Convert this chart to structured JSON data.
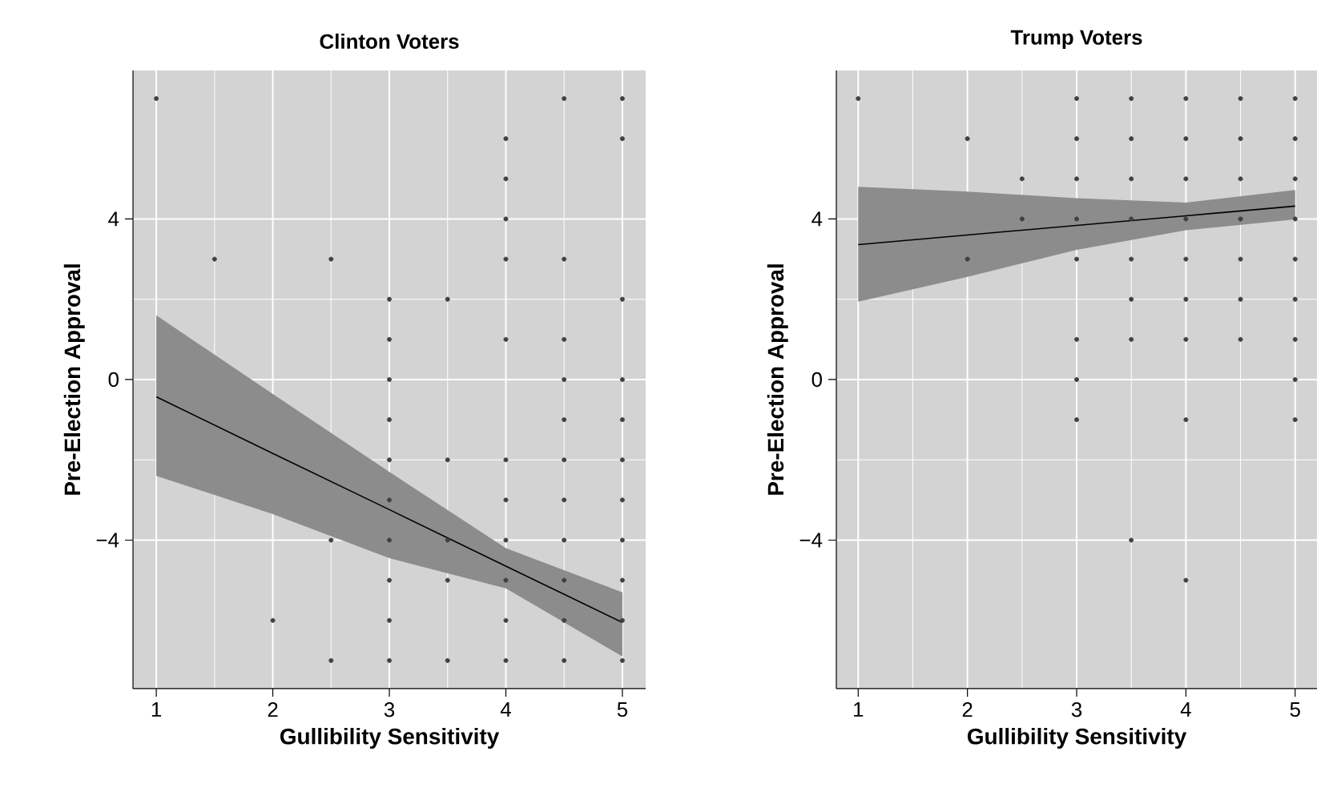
{
  "chart_data": [
    {
      "type": "scatter",
      "title": "Clinton Voters",
      "xlabel": "Gullibility Sensitivity",
      "ylabel": "Pre-Election Approval",
      "xlim": [
        0.8,
        5.2
      ],
      "ylim": [
        -7.7,
        7.7
      ],
      "xticks": [
        1,
        2,
        3,
        4,
        5
      ],
      "yticks": [
        {
          "value": -4,
          "label": "−4"
        },
        0,
        4
      ],
      "grid": true,
      "series": [
        {
          "type": "scatter",
          "marker": "circle",
          "color": "#404040",
          "x": [
            1,
            1.5,
            2,
            2.5,
            2.5,
            2.5,
            3,
            3,
            3,
            3,
            3,
            3,
            3,
            3,
            3,
            3,
            3.5,
            3.5,
            3.5,
            3.5,
            3.5,
            4,
            4,
            4,
            4,
            4,
            4,
            4,
            4,
            4,
            4,
            4,
            4.5,
            4.5,
            4.5,
            4.5,
            4.5,
            4.5,
            4.5,
            4.5,
            4.5,
            4.5,
            4.5,
            5,
            5,
            5,
            5,
            5,
            5,
            5,
            5,
            5,
            5,
            5
          ],
          "values": [
            7,
            3,
            -6,
            3,
            -4,
            -7,
            2,
            1,
            0,
            -1,
            -2,
            -3,
            -4,
            -5,
            -6,
            -7,
            2,
            -2,
            -4,
            -5,
            -7,
            6,
            5,
            4,
            3,
            1,
            -2,
            -3,
            -4,
            -5,
            -6,
            -7,
            7,
            3,
            1,
            0,
            -1,
            -2,
            -3,
            -4,
            -5,
            -6,
            -7,
            7,
            6,
            2,
            0,
            -1,
            -2,
            -3,
            -4,
            -5,
            -6,
            -7
          ]
        },
        {
          "type": "line",
          "marker": "none",
          "color": "#000000",
          "x": [
            1,
            2,
            3,
            4,
            5
          ],
          "values": [
            -0.43,
            -1.84,
            -3.24,
            -4.65,
            -6.05
          ],
          "lower": [
            -2.4,
            -3.35,
            -4.45,
            -5.2,
            -6.9
          ],
          "upper": [
            1.6,
            -0.36,
            -2.3,
            -4.2,
            -5.3
          ]
        }
      ]
    },
    {
      "type": "scatter",
      "title": "Trump Voters",
      "xlabel": "Gullibility Sensitivity",
      "ylabel": "Pre-Election Approval",
      "xlim": [
        0.8,
        5.2
      ],
      "ylim": [
        -7.7,
        7.7
      ],
      "xticks": [
        1,
        2,
        3,
        4,
        5
      ],
      "yticks": [
        {
          "value": -4,
          "label": "−4"
        },
        0,
        4
      ],
      "grid": true,
      "series": [
        {
          "type": "scatter",
          "marker": "circle",
          "color": "#404040",
          "x": [
            1,
            2,
            2,
            2.5,
            2.5,
            3,
            3,
            3,
            3,
            3,
            3,
            3,
            3,
            3.5,
            3.5,
            3.5,
            3.5,
            3.5,
            3.5,
            3.5,
            3.5,
            4,
            4,
            4,
            4,
            4,
            4,
            4,
            4,
            4,
            4.5,
            4.5,
            4.5,
            4.5,
            4.5,
            4.5,
            4.5,
            5,
            5,
            5,
            5,
            5,
            5,
            5,
            5,
            5
          ],
          "values": [
            7,
            6,
            3,
            5,
            4,
            7,
            6,
            5,
            4,
            3,
            1,
            0,
            -1,
            7,
            6,
            5,
            4,
            3,
            2,
            1,
            -4,
            7,
            6,
            5,
            4,
            3,
            2,
            1,
            -1,
            -5,
            7,
            6,
            5,
            4,
            3,
            2,
            1,
            7,
            6,
            5,
            4,
            3,
            2,
            1,
            0,
            -1
          ]
        },
        {
          "type": "line",
          "marker": "none",
          "color": "#000000",
          "x": [
            1,
            2,
            3,
            4,
            5
          ],
          "values": [
            3.36,
            3.6,
            3.84,
            4.08,
            4.32
          ],
          "lower": [
            1.94,
            2.56,
            3.23,
            3.72,
            3.99
          ],
          "upper": [
            4.8,
            4.68,
            4.52,
            4.41,
            4.72
          ]
        }
      ]
    }
  ]
}
